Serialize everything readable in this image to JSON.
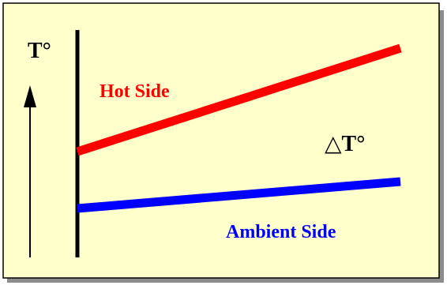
{
  "labels": {
    "temperature": "T°",
    "hot_side": "Hot Side",
    "delta_t": "△T°",
    "ambient_side": "Ambient Side"
  },
  "colors": {
    "panel_background": "#FFFFCC",
    "shadow": "#8C8C8C",
    "border": "#000000",
    "hot_line": "#FF0000",
    "ambient_line": "#0000FF",
    "hot_text": "#FF0000",
    "ambient_text": "#0000FF",
    "black_text": "#000000"
  },
  "icons": {
    "axis_arrow": "up-arrow-icon"
  }
}
